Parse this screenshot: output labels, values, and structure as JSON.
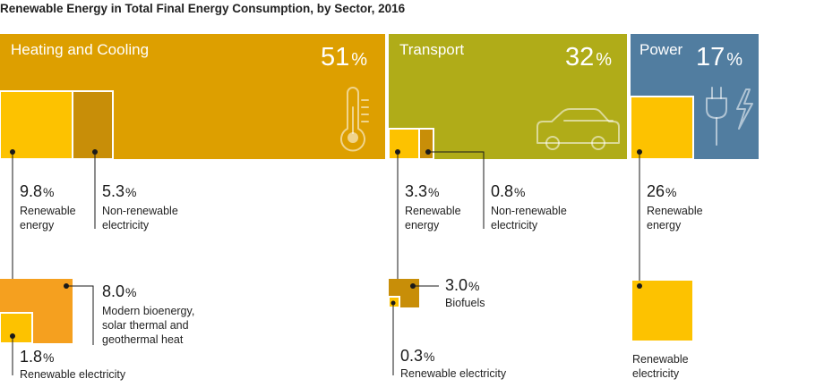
{
  "title": "Renewable Energy in Total Final Energy Consumption, by Sector, 2016",
  "colors": {
    "heating": "#dd9f00",
    "heating_renewable": "#fdc200",
    "heating_nonrenewable": "#c88e08",
    "transport": "#b0ac18",
    "transport_renewable": "#fdc200",
    "transport_nonrenewable": "#c88e08",
    "biofuels": "#c88e08",
    "power": "#517da0",
    "power_renewable": "#fdc200",
    "bioenergy": "#f5a01f",
    "renewable_electricity": "#fdc200"
  },
  "sectors": [
    {
      "id": "heating",
      "name": "Heating and Cooling",
      "value": "51",
      "unit": "%",
      "icon": "thermometer-icon"
    },
    {
      "id": "transport",
      "name": "Transport",
      "value": "32",
      "unit": "%",
      "icon": "car-icon"
    },
    {
      "id": "power",
      "name": "Power",
      "value": "17",
      "unit": "%",
      "icon": "plug-lightning-icon"
    }
  ],
  "breakdown": {
    "heating_renewable": {
      "value": "9.8",
      "unit": "%",
      "label_1": "Renewable",
      "label_2": "energy"
    },
    "heating_nonrenewable": {
      "value": "5.3",
      "unit": "%",
      "label_1": "Non-renewable",
      "label_2": "electricity"
    },
    "heating_bioenergy": {
      "value": "8.0",
      "unit": "%",
      "label_1": "Modern bioenergy,",
      "label_2": "solar thermal and",
      "label_3": "geothermal heat"
    },
    "heating_renew_elec": {
      "value": "1.8",
      "unit": "%",
      "label": "Renewable electricity"
    },
    "transport_renewable": {
      "value": "3.3",
      "unit": "%",
      "label_1": "Renewable",
      "label_2": "energy"
    },
    "transport_nonrenewable": {
      "value": "0.8",
      "unit": "%",
      "label_1": "Non-renewable",
      "label_2": "electricity"
    },
    "transport_biofuels": {
      "value": "3.0",
      "unit": "%",
      "label": "Biofuels"
    },
    "transport_renew_elec": {
      "value": "0.3",
      "unit": "%",
      "label": "Renewable electricity"
    },
    "power_renewable": {
      "value": "26",
      "unit": "%",
      "label_1": "Renewable",
      "label_2": "energy"
    },
    "power_renew_elec": {
      "label_1": "Renewable",
      "label_2": "electricity"
    }
  }
}
